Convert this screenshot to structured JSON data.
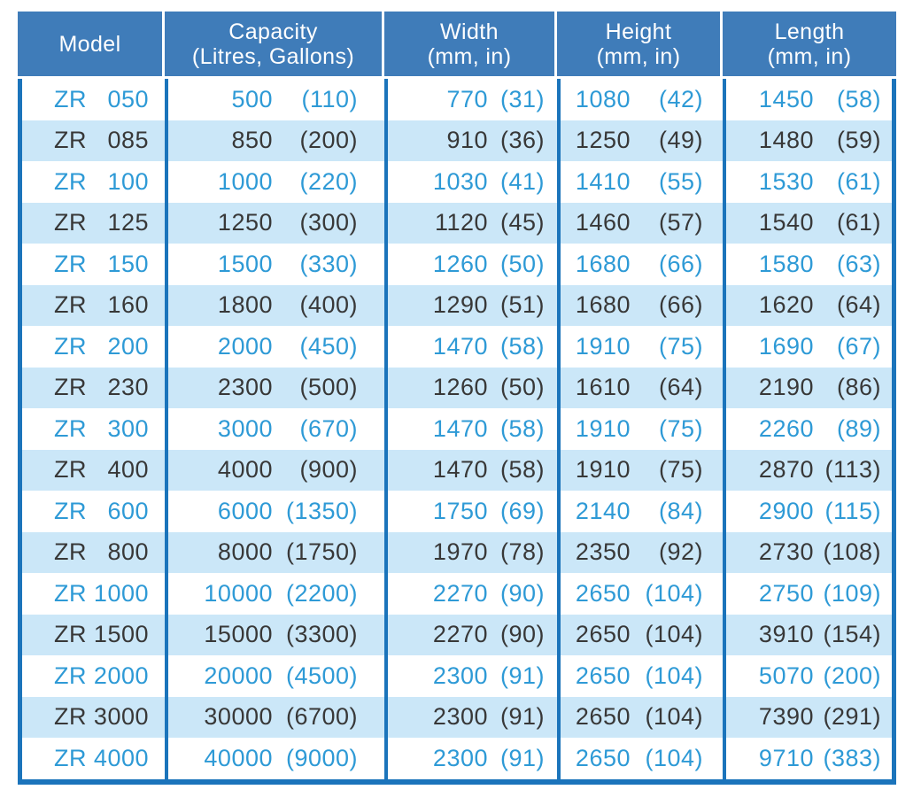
{
  "colors": {
    "header_bg": "#3F7CB9",
    "border": "#1B74BB",
    "row_alt_bg": "#CBE7F8",
    "text_blue": "#2E9AD6",
    "text_dark": "#383838",
    "header_text": "#FFFFFF"
  },
  "chart_data": {
    "type": "table",
    "columns": [
      {
        "label": "Model",
        "sublabel": ""
      },
      {
        "label": "Capacity",
        "sublabel": "(Litres, Gallons)"
      },
      {
        "label": "Width",
        "sublabel": "(mm, in)"
      },
      {
        "label": "Height",
        "sublabel": "(mm, in)"
      },
      {
        "label": "Length",
        "sublabel": "(mm, in)"
      }
    ],
    "rows": [
      {
        "prefix": "ZR",
        "model": "050",
        "cap": "500",
        "cap_g": "(110)",
        "w": "770",
        "w_in": "(31)",
        "h": "1080",
        "h_in": "(42)",
        "l": "1450",
        "l_in": "(58)"
      },
      {
        "prefix": "ZR",
        "model": "085",
        "cap": "850",
        "cap_g": "(200)",
        "w": "910",
        "w_in": "(36)",
        "h": "1250",
        "h_in": "(49)",
        "l": "1480",
        "l_in": "(59)"
      },
      {
        "prefix": "ZR",
        "model": "100",
        "cap": "1000",
        "cap_g": "(220)",
        "w": "1030",
        "w_in": "(41)",
        "h": "1410",
        "h_in": "(55)",
        "l": "1530",
        "l_in": "(61)"
      },
      {
        "prefix": "ZR",
        "model": "125",
        "cap": "1250",
        "cap_g": "(300)",
        "w": "1120",
        "w_in": "(45)",
        "h": "1460",
        "h_in": "(57)",
        "l": "1540",
        "l_in": "(61)"
      },
      {
        "prefix": "ZR",
        "model": "150",
        "cap": "1500",
        "cap_g": "(330)",
        "w": "1260",
        "w_in": "(50)",
        "h": "1680",
        "h_in": "(66)",
        "l": "1580",
        "l_in": "(63)"
      },
      {
        "prefix": "ZR",
        "model": "160",
        "cap": "1800",
        "cap_g": "(400)",
        "w": "1290",
        "w_in": "(51)",
        "h": "1680",
        "h_in": "(66)",
        "l": "1620",
        "l_in": "(64)"
      },
      {
        "prefix": "ZR",
        "model": "200",
        "cap": "2000",
        "cap_g": "(450)",
        "w": "1470",
        "w_in": "(58)",
        "h": "1910",
        "h_in": "(75)",
        "l": "1690",
        "l_in": "(67)"
      },
      {
        "prefix": "ZR",
        "model": "230",
        "cap": "2300",
        "cap_g": "(500)",
        "w": "1260",
        "w_in": "(50)",
        "h": "1610",
        "h_in": "(64)",
        "l": "2190",
        "l_in": "(86)"
      },
      {
        "prefix": "ZR",
        "model": "300",
        "cap": "3000",
        "cap_g": "(670)",
        "w": "1470",
        "w_in": "(58)",
        "h": "1910",
        "h_in": "(75)",
        "l": "2260",
        "l_in": "(89)"
      },
      {
        "prefix": "ZR",
        "model": "400",
        "cap": "4000",
        "cap_g": "(900)",
        "w": "1470",
        "w_in": "(58)",
        "h": "1910",
        "h_in": "(75)",
        "l": "2870",
        "l_in": "(113)"
      },
      {
        "prefix": "ZR",
        "model": "600",
        "cap": "6000",
        "cap_g": "(1350)",
        "w": "1750",
        "w_in": "(69)",
        "h": "2140",
        "h_in": "(84)",
        "l": "2900",
        "l_in": "(115)"
      },
      {
        "prefix": "ZR",
        "model": "800",
        "cap": "8000",
        "cap_g": "(1750)",
        "w": "1970",
        "w_in": "(78)",
        "h": "2350",
        "h_in": "(92)",
        "l": "2730",
        "l_in": "(108)"
      },
      {
        "prefix": "ZR",
        "model": "1000",
        "cap": "10000",
        "cap_g": "(2200)",
        "w": "2270",
        "w_in": "(90)",
        "h": "2650",
        "h_in": "(104)",
        "l": "2750",
        "l_in": "(109)"
      },
      {
        "prefix": "ZR",
        "model": "1500",
        "cap": "15000",
        "cap_g": "(3300)",
        "w": "2270",
        "w_in": "(90)",
        "h": "2650",
        "h_in": "(104)",
        "l": "3910",
        "l_in": "(154)"
      },
      {
        "prefix": "ZR",
        "model": "2000",
        "cap": "20000",
        "cap_g": "(4500)",
        "w": "2300",
        "w_in": "(91)",
        "h": "2650",
        "h_in": "(104)",
        "l": "5070",
        "l_in": "(200)"
      },
      {
        "prefix": "ZR",
        "model": "3000",
        "cap": "30000",
        "cap_g": "(6700)",
        "w": "2300",
        "w_in": "(91)",
        "h": "2650",
        "h_in": "(104)",
        "l": "7390",
        "l_in": "(291)"
      },
      {
        "prefix": "ZR",
        "model": "4000",
        "cap": "40000",
        "cap_g": "(9000)",
        "w": "2300",
        "w_in": "(91)",
        "h": "2650",
        "h_in": "(104)",
        "l": "9710",
        "l_in": "(383)"
      }
    ]
  }
}
